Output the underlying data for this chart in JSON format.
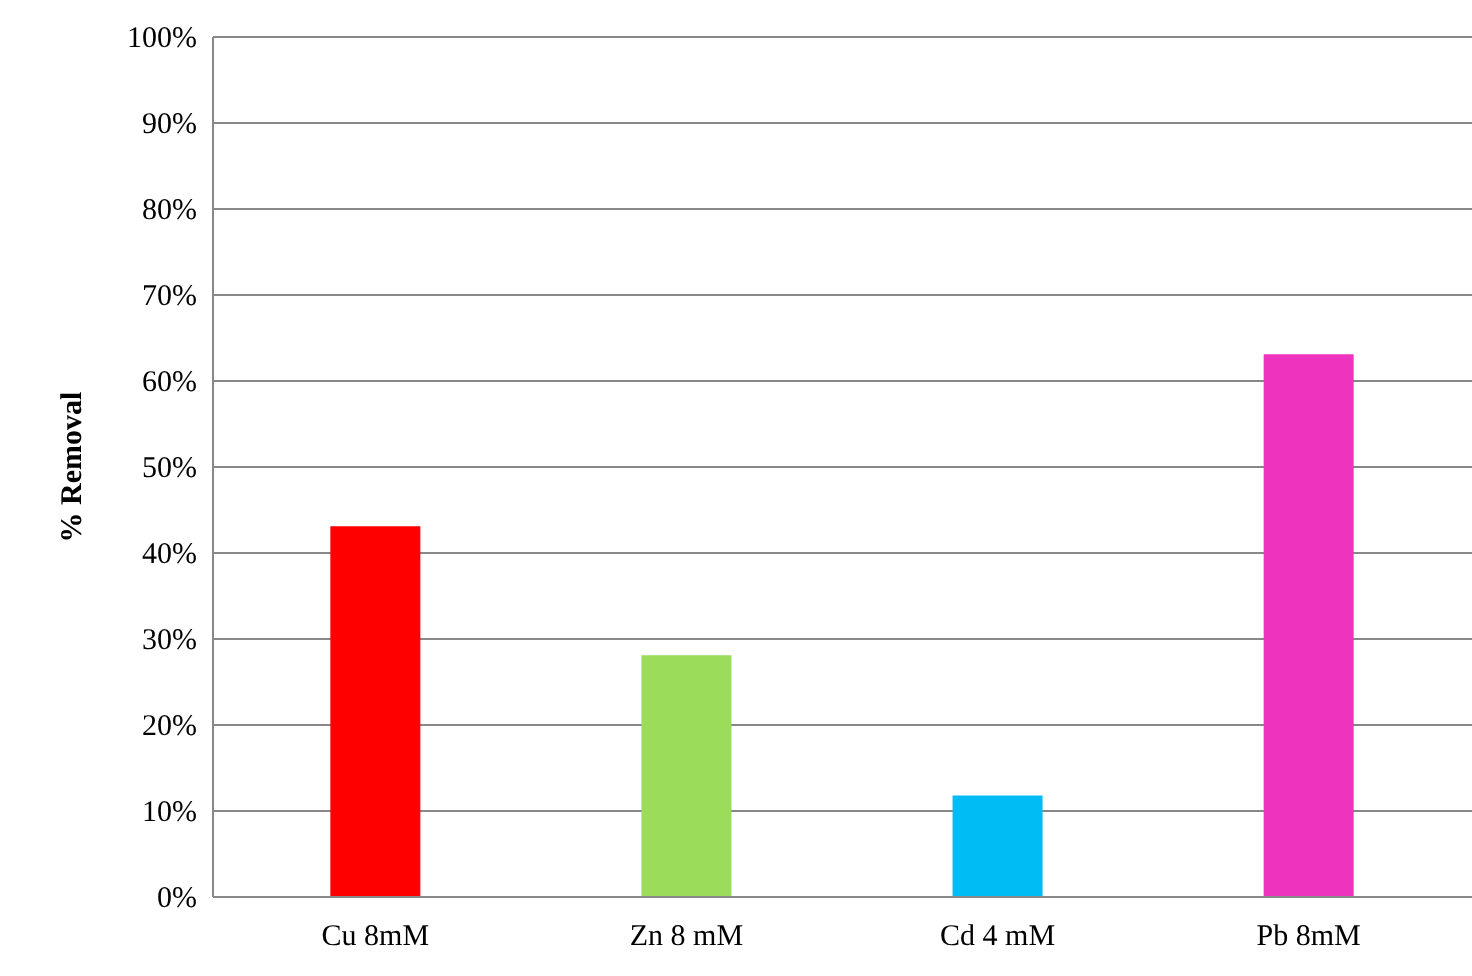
{
  "chart_data": {
    "type": "bar",
    "ylabel": "% Removal",
    "categories": [
      "Cu 8mM",
      "Zn 8 mM",
      "Cd 4 mM",
      "Pb 8mM"
    ],
    "values": [
      43,
      28,
      11.7,
      63
    ],
    "colors": [
      "#fe0000",
      "#9bdc5a",
      "#00bcf4",
      "#ee33be"
    ],
    "ylim": [
      0,
      100
    ],
    "yticks": [
      {
        "value": 0,
        "label": "0%"
      },
      {
        "value": 10,
        "label": "10%"
      },
      {
        "value": 20,
        "label": "20%"
      },
      {
        "value": 30,
        "label": "30%"
      },
      {
        "value": 40,
        "label": "40%"
      },
      {
        "value": 50,
        "label": "50%"
      },
      {
        "value": 60,
        "label": "60%"
      },
      {
        "value": 70,
        "label": "70%"
      },
      {
        "value": 80,
        "label": "80%"
      },
      {
        "value": 90,
        "label": "90%"
      },
      {
        "value": 100,
        "label": "100%"
      }
    ],
    "grid": "y"
  }
}
